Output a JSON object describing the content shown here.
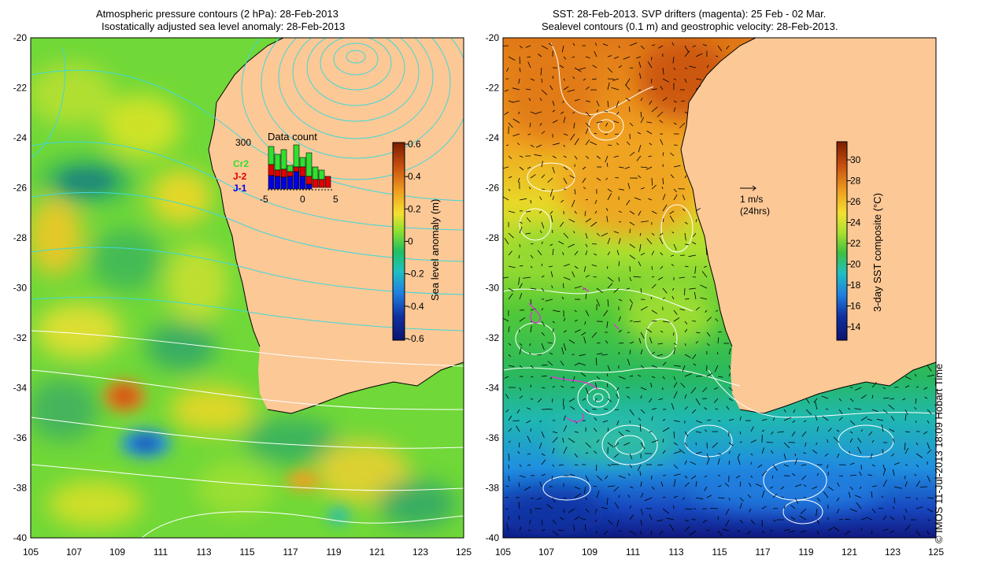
{
  "left_map": {
    "title_line1": "Atmospheric pressure contours (2 hPa): 28-Feb-2013",
    "title_line2": "Isostatically adjusted sea level anomaly: 28-Feb-2013",
    "colorbar": {
      "label": "Sea level anomaly (m)",
      "ticks": [
        "0.6",
        "0.4",
        "0.2",
        "0",
        "-0.2",
        "-0.4",
        "-0.6"
      ],
      "ramp": [
        "#7b1d00",
        "#c84f10",
        "#f0a020",
        "#f4e030",
        "#8ce030",
        "#20c060",
        "#20c0c0",
        "#2080e0",
        "#1030a0",
        "#0a1470"
      ]
    },
    "data_count": {
      "title": "Data count",
      "ymax_label": "300",
      "legend": [
        "Cr2",
        "J-2",
        "J-1"
      ],
      "legend_colors": [
        "#30e030",
        "#e00000",
        "#0000e0"
      ],
      "xticks": [
        "-5",
        "0",
        "5"
      ]
    }
  },
  "right_map": {
    "title_line1": "SST: 28-Feb-2013. SVP drifters (magenta): 25 Feb - 02 Mar.",
    "title_line2": "Sealevel contours (0.1 m) and geostrophic velocity: 28-Feb-2013.",
    "colorbar": {
      "label": "3-day SST composite (°C)",
      "ticks": [
        "30",
        "28",
        "26",
        "24",
        "22",
        "20",
        "18",
        "16",
        "14"
      ],
      "ramp": [
        "#7b1d00",
        "#c84f10",
        "#f0a020",
        "#f4e030",
        "#a8e030",
        "#40c040",
        "#20c0c0",
        "#2080e0",
        "#1030a0",
        "#0a1470"
      ]
    },
    "velocity_key": {
      "label1": "1 m/s",
      "label2": "(24hrs)"
    }
  },
  "axes": {
    "lon_ticks": [
      "105",
      "107",
      "109",
      "111",
      "113",
      "115",
      "117",
      "119",
      "121",
      "123",
      "125"
    ],
    "lat_ticks": [
      "-20",
      "-22",
      "-24",
      "-26",
      "-28",
      "-30",
      "-32",
      "-34",
      "-36",
      "-38",
      "-40"
    ]
  },
  "colors": {
    "land": "#fcc896",
    "pressure_contour": "#40d8d8",
    "sealevel_contour": "#ffffff",
    "drifter": "#d040d0"
  },
  "copyright": "© IMOS 11-Jul-2013 18:09 Hobart Time"
}
